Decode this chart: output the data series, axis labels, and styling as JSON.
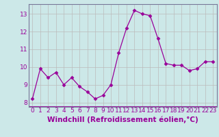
{
  "x": [
    0,
    1,
    2,
    3,
    4,
    5,
    6,
    7,
    8,
    9,
    10,
    11,
    12,
    13,
    14,
    15,
    16,
    17,
    18,
    19,
    20,
    21,
    22,
    23
  ],
  "y": [
    8.2,
    9.9,
    9.4,
    9.7,
    9.0,
    9.4,
    8.9,
    8.6,
    8.2,
    8.4,
    9.0,
    10.8,
    12.2,
    13.2,
    13.0,
    12.9,
    11.6,
    10.2,
    10.1,
    10.1,
    9.8,
    9.9,
    10.3,
    10.3
  ],
  "line_color": "#990099",
  "marker": "D",
  "marker_size": 2.5,
  "bg_color": "#cce8e8",
  "grid_color": "#bbbbbb",
  "xlabel": "Windchill (Refroidissement éolien,°C)",
  "ylim": [
    7.75,
    13.55
  ],
  "xlim": [
    -0.5,
    23.5
  ],
  "yticks": [
    8,
    9,
    10,
    11,
    12,
    13
  ],
  "xticks": [
    0,
    1,
    2,
    3,
    4,
    5,
    6,
    7,
    8,
    9,
    10,
    11,
    12,
    13,
    14,
    15,
    16,
    17,
    18,
    19,
    20,
    21,
    22,
    23
  ],
  "tick_label_fontsize": 6.5,
  "xlabel_fontsize": 7.5
}
